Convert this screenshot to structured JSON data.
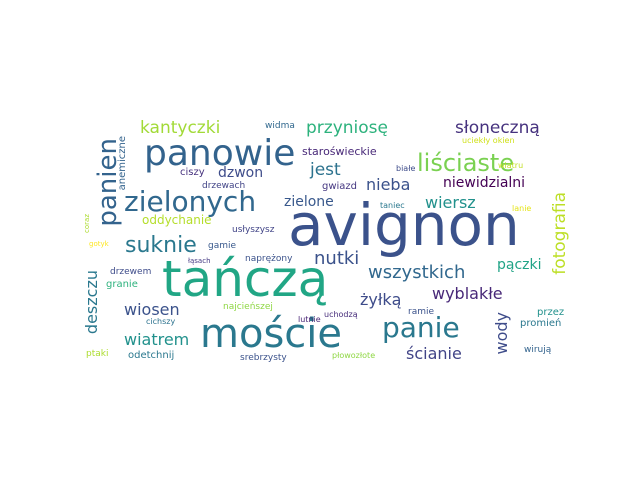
{
  "cloud": {
    "words": [
      {
        "text": "avignon",
        "color": "#3b528b",
        "vertical": false
      },
      {
        "text": "tańczą",
        "color": "#21a685",
        "vertical": false
      },
      {
        "text": "mоście",
        "color": "#2a788e",
        "vertical": false
      },
      {
        "text": "panowie",
        "color": "#33638d",
        "vertical": false
      },
      {
        "text": "zielonych",
        "color": "#31688e",
        "vertical": false
      },
      {
        "text": "panie",
        "color": "#2a788e",
        "vertical": false
      },
      {
        "text": "liściaste",
        "color": "#7ad151",
        "vertical": false
      },
      {
        "text": "suknie",
        "color": "#2a788e",
        "vertical": false
      },
      {
        "text": "panien",
        "color": "#33638d",
        "vertical": true
      },
      {
        "text": "kantyczki",
        "color": "#a2da37",
        "vertical": false
      },
      {
        "text": "przyniosę",
        "color": "#2db27d",
        "vertical": false
      },
      {
        "text": "słoneczną",
        "color": "#46327e",
        "vertical": false
      },
      {
        "text": "dzwon",
        "color": "#3e4c8a",
        "vertical": false
      },
      {
        "text": "jest",
        "color": "#2c728e",
        "vertical": false
      },
      {
        "text": "nieba",
        "color": "#3b528b",
        "vertical": false
      },
      {
        "text": "niewidzialni",
        "color": "#440154",
        "vertical": false
      },
      {
        "text": "wiersz",
        "color": "#21918c",
        "vertical": false
      },
      {
        "text": "oddychanie",
        "color": "#b5de2b",
        "vertical": false
      },
      {
        "text": "zielone",
        "color": "#38588c",
        "vertical": false
      },
      {
        "text": "nutki",
        "color": "#3b528b",
        "vertical": false
      },
      {
        "text": "wszystkich",
        "color": "#31688e",
        "vertical": false
      },
      {
        "text": "fotografia",
        "color": "#bddf26",
        "vertical": true
      },
      {
        "text": "pączki",
        "color": "#20a386",
        "vertical": false
      },
      {
        "text": "żyłką",
        "color": "#3e4c8a",
        "vertical": false
      },
      {
        "text": "wyblakłe",
        "color": "#482878",
        "vertical": false
      },
      {
        "text": "deszczu",
        "color": "#2a788e",
        "vertical": true
      },
      {
        "text": "wiosen",
        "color": "#3b528b",
        "vertical": false
      },
      {
        "text": "wiatrem",
        "color": "#21918c",
        "vertical": false
      },
      {
        "text": "wody",
        "color": "#3e4c8a",
        "vertical": true
      },
      {
        "text": "ścianie",
        "color": "#414487",
        "vertical": false
      },
      {
        "text": "staroświeckie",
        "color": "#482878",
        "vertical": false
      },
      {
        "text": "anemiczne",
        "color": "#33638d",
        "vertical": true
      },
      {
        "text": "widma",
        "color": "#31688e",
        "vertical": false
      },
      {
        "text": "ciszy",
        "color": "#46327e",
        "vertical": false
      },
      {
        "text": "drzewach",
        "color": "#414487",
        "vertical": false
      },
      {
        "text": "gwiazd",
        "color": "#453781",
        "vertical": false
      },
      {
        "text": "białe",
        "color": "#3e4c8a",
        "vertical": false
      },
      {
        "text": "taniec",
        "color": "#2a788e",
        "vertical": false
      },
      {
        "text": "wiatru",
        "color": "#c2df23",
        "vertical": false
      },
      {
        "text": "uciekły okien",
        "color": "#d0e11c",
        "vertical": false
      },
      {
        "text": "lanie",
        "color": "#e5e419",
        "vertical": false
      },
      {
        "text": "usłyszysz",
        "color": "#414487",
        "vertical": false
      },
      {
        "text": "gamie",
        "color": "#38588c",
        "vertical": false
      },
      {
        "text": "naprężony",
        "color": "#3b528b",
        "vertical": false
      },
      {
        "text": "coraz",
        "color": "#addc30",
        "vertical": true
      },
      {
        "text": "gotyk",
        "color": "#fde725",
        "vertical": false
      },
      {
        "text": "łąsach",
        "color": "#443983",
        "vertical": false
      },
      {
        "text": "drzewem",
        "color": "#3e4c8a",
        "vertical": false
      },
      {
        "text": "granie",
        "color": "#2db27d",
        "vertical": false
      },
      {
        "text": "najcieńszej",
        "color": "#8fd744",
        "vertical": false
      },
      {
        "text": "lutnie",
        "color": "#482475",
        "vertical": false
      },
      {
        "text": "uchodzą",
        "color": "#472d7b",
        "vertical": false
      },
      {
        "text": "ramie",
        "color": "#3b528b",
        "vertical": false
      },
      {
        "text": "przez",
        "color": "#21918c",
        "vertical": false
      },
      {
        "text": "promień",
        "color": "#2a788e",
        "vertical": false
      },
      {
        "text": "cichszy",
        "color": "#2c728e",
        "vertical": false
      },
      {
        "text": "odetchnij",
        "color": "#2a788e",
        "vertical": false
      },
      {
        "text": "ptaki",
        "color": "#addc30",
        "vertical": false
      },
      {
        "text": "srebrzysty",
        "color": "#3b528b",
        "vertical": false
      },
      {
        "text": "płowozłote",
        "color": "#8fd744",
        "vertical": false
      },
      {
        "text": "wirują",
        "color": "#33638d",
        "vertical": false
      }
    ]
  }
}
